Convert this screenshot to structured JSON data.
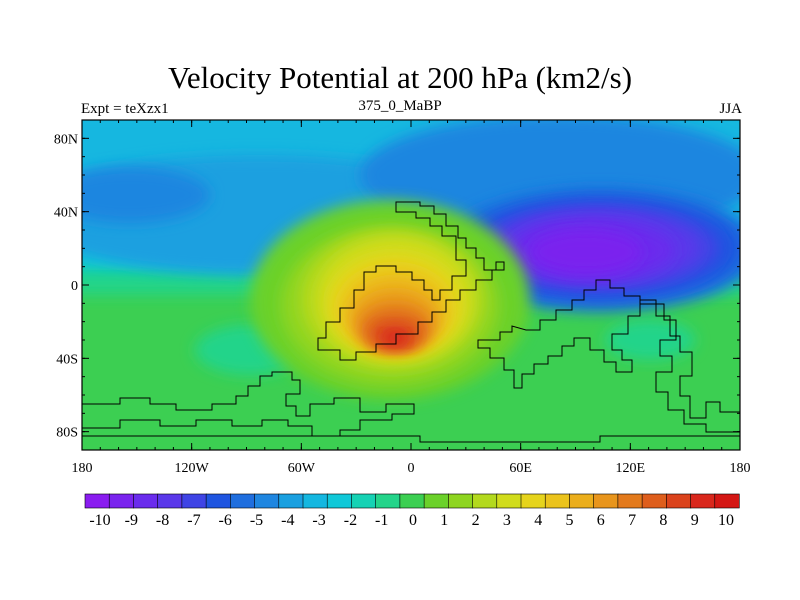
{
  "header": {
    "title": "Velocity Potential at 200 hPa (km2/s)",
    "left": "Expt = teXzx1",
    "center": "375_0_MaBP",
    "right": "JJA"
  },
  "map": {
    "lon_range": [
      -180,
      180
    ],
    "lat_range": [
      -90,
      90
    ],
    "x_ticks": [
      {
        "value": -180,
        "label": "180"
      },
      {
        "value": -120,
        "label": "120W"
      },
      {
        "value": -60,
        "label": "60W"
      },
      {
        "value": 0,
        "label": "0"
      },
      {
        "value": 60,
        "label": "60E"
      },
      {
        "value": 120,
        "label": "120E"
      },
      {
        "value": 180,
        "label": "180"
      }
    ],
    "y_ticks": [
      {
        "value": 80,
        "label": "80N"
      },
      {
        "value": 40,
        "label": "40N"
      },
      {
        "value": 0,
        "label": "0"
      },
      {
        "value": -40,
        "label": "40S"
      },
      {
        "value": -80,
        "label": "80S"
      }
    ],
    "background_value": 1.8,
    "field_centers": [
      {
        "lon": 110,
        "lat": 18,
        "value": -10.3,
        "label": "minimum"
      },
      {
        "lon": -15,
        "lat": -25,
        "value": 9.8,
        "label": "maximum"
      }
    ]
  },
  "colorbar": {
    "labels": [
      "-10",
      "-9",
      "-8",
      "-7",
      "-6",
      "-5",
      "-4",
      "-3",
      "-2",
      "-1",
      "0",
      "1",
      "2",
      "3",
      "4",
      "5",
      "6",
      "7",
      "8",
      "9",
      "10"
    ],
    "colors": [
      "#8a1cf0",
      "#7a24ee",
      "#6a2ced",
      "#5a38ea",
      "#3f44e5",
      "#1f55e0",
      "#1f6ede",
      "#1f86e0",
      "#1aa0e0",
      "#14b7e0",
      "#10c8d8",
      "#16d2b4",
      "#24d48a",
      "#3ccf52",
      "#6bd12a",
      "#8ed520",
      "#b3d91e",
      "#d1dc1c",
      "#e6d41c",
      "#ebc31c",
      "#ebae1c",
      "#e8951c",
      "#e37a1c",
      "#de5e1c",
      "#db431c",
      "#d9271c",
      "#d41714"
    ]
  }
}
